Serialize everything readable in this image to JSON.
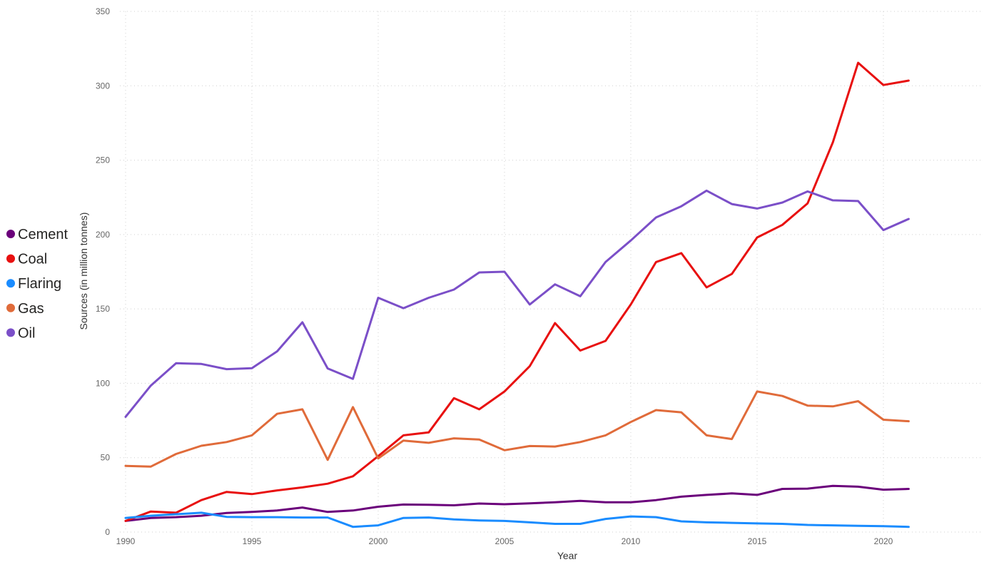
{
  "chart_data": {
    "type": "line",
    "xlabel": "Year",
    "ylabel": "Sources (in million tonnes)",
    "xlim": [
      1990,
      2024
    ],
    "ylim": [
      0,
      350
    ],
    "x_ticks": [
      1990,
      1995,
      2000,
      2005,
      2010,
      2015,
      2020
    ],
    "y_ticks": [
      0,
      50,
      100,
      150,
      200,
      250,
      300,
      350
    ],
    "grid": true,
    "legend_position": "left",
    "x": [
      1990,
      1991,
      1992,
      1993,
      1994,
      1995,
      1996,
      1997,
      1998,
      1999,
      2000,
      2001,
      2002,
      2003,
      2004,
      2005,
      2006,
      2007,
      2008,
      2009,
      2010,
      2011,
      2012,
      2013,
      2014,
      2015,
      2016,
      2017,
      2018,
      2019,
      2020,
      2021
    ],
    "series": [
      {
        "name": "Cement",
        "color": "#6B007B",
        "values": [
          7.5,
          9.5,
          10,
          11,
          12.8,
          13.5,
          14.5,
          16.5,
          13.5,
          14.5,
          17,
          18.5,
          18.3,
          18,
          19.2,
          18.7,
          19.3,
          20,
          21,
          20,
          20,
          21.5,
          23.8,
          25,
          26,
          25,
          29,
          29.2,
          31,
          30.5,
          28.5,
          29
        ]
      },
      {
        "name": "Coal",
        "color": "#E81010",
        "values": [
          7.5,
          13.8,
          13,
          21.5,
          27,
          25.5,
          28,
          30,
          32.5,
          37.5,
          51,
          65,
          67,
          90,
          82.5,
          94.5,
          111.5,
          140.5,
          122,
          128.5,
          153,
          181.5,
          187.5,
          164.5,
          173.5,
          198,
          206.5,
          221,
          262,
          315.5,
          300.5,
          303.5
        ]
      },
      {
        "name": "Flaring",
        "color": "#1A8CFF",
        "values": [
          9.5,
          11,
          12,
          13,
          10.2,
          10,
          10,
          9.8,
          9.8,
          3.5,
          4.5,
          9.5,
          9.8,
          8.5,
          7.8,
          7.5,
          6.5,
          5.5,
          5.5,
          8.8,
          10.5,
          10,
          7.2,
          6.5,
          6.2,
          5.8,
          5.5,
          4.8,
          4.5,
          4.2,
          4,
          3.5
        ]
      },
      {
        "name": "Gas",
        "color": "#E06B3A",
        "values": [
          44.5,
          44,
          52.5,
          58,
          60.5,
          65,
          79.5,
          82.5,
          48.5,
          84,
          49.5,
          61.5,
          60,
          63,
          62.2,
          55,
          57.8,
          57.5,
          60.5,
          65,
          74,
          82,
          80.5,
          65,
          62.5,
          94.5,
          91.5,
          85,
          84.5,
          88,
          75.5,
          74.5
        ]
      },
      {
        "name": "Oil",
        "color": "#7B4FC8",
        "values": [
          77.5,
          98.5,
          113.5,
          113,
          109.5,
          110.2,
          121.5,
          141,
          110,
          103,
          157.5,
          150.5,
          157.5,
          163,
          174.5,
          175,
          153,
          166.5,
          158.5,
          181.5,
          196,
          211.5,
          219,
          229.5,
          220.5,
          217.5,
          221.5,
          229,
          223,
          222.5,
          203,
          210.5
        ]
      }
    ]
  }
}
